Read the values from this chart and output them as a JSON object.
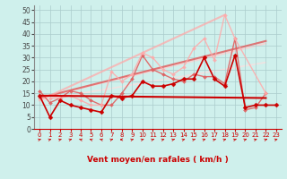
{
  "xlabel": "Vent moyen/en rafales ( km/h )",
  "xlim": [
    -0.5,
    23.5
  ],
  "ylim": [
    0,
    52
  ],
  "yticks": [
    0,
    5,
    10,
    15,
    20,
    25,
    30,
    35,
    40,
    45,
    50
  ],
  "xticks": [
    0,
    1,
    2,
    3,
    4,
    5,
    6,
    7,
    8,
    9,
    10,
    11,
    12,
    13,
    14,
    15,
    16,
    17,
    18,
    19,
    20,
    21,
    22,
    23
  ],
  "background_color": "#cff0ec",
  "grid_color": "#aacccc",
  "series": [
    {
      "x": [
        0,
        1,
        2,
        3,
        4,
        5,
        6,
        7,
        8,
        9,
        10,
        11,
        12,
        13,
        14,
        15,
        16,
        17,
        18,
        19,
        20,
        21,
        22,
        23
      ],
      "y": [
        14,
        5,
        12,
        10,
        9,
        8,
        7,
        14,
        13,
        14,
        20,
        18,
        18,
        19,
        21,
        21,
        30,
        21,
        18,
        31,
        9,
        10,
        10,
        10
      ],
      "color": "#cc0000",
      "lw": 1.2,
      "marker": "D",
      "ms": 2.5,
      "alpha": 1.0,
      "zorder": 5
    },
    {
      "x": [
        0,
        22
      ],
      "y": [
        14,
        13
      ],
      "color": "#cc0000",
      "lw": 1.5,
      "marker": null,
      "ms": 0,
      "alpha": 1.0,
      "zorder": 4
    },
    {
      "x": [
        0,
        1,
        2,
        3,
        4,
        5,
        6,
        7,
        8,
        9,
        10,
        11,
        12,
        13,
        14,
        15,
        16,
        17,
        18,
        19,
        20,
        21,
        22
      ],
      "y": [
        16,
        11,
        13,
        16,
        15,
        12,
        10,
        10,
        15,
        21,
        31,
        25,
        23,
        21,
        20,
        23,
        22,
        22,
        19,
        38,
        8,
        9,
        15
      ],
      "color": "#e06060",
      "lw": 1.0,
      "marker": "D",
      "ms": 2.0,
      "alpha": 0.9,
      "zorder": 3
    },
    {
      "x": [
        0,
        22
      ],
      "y": [
        13,
        37
      ],
      "color": "#e06060",
      "lw": 1.5,
      "marker": null,
      "ms": 0,
      "alpha": 0.85,
      "zorder": 2
    },
    {
      "x": [
        1,
        2,
        3,
        4,
        5,
        6,
        7,
        8,
        9,
        10,
        11,
        12,
        13,
        14,
        15,
        16,
        17,
        18,
        19,
        22
      ],
      "y": [
        13,
        13,
        14,
        12,
        10,
        10,
        24,
        20,
        23,
        32,
        30,
        25,
        23,
        26,
        34,
        38,
        29,
        48,
        38,
        15
      ],
      "color": "#ffaaaa",
      "lw": 1.0,
      "marker": "D",
      "ms": 2.0,
      "alpha": 0.85,
      "zorder": 3
    },
    {
      "x": [
        0,
        18
      ],
      "y": [
        12,
        48
      ],
      "color": "#ffaaaa",
      "lw": 1.5,
      "marker": null,
      "ms": 0,
      "alpha": 0.75,
      "zorder": 2
    },
    {
      "x": [
        0,
        22
      ],
      "y": [
        13,
        36
      ],
      "color": "#ffcccc",
      "lw": 1.5,
      "marker": null,
      "ms": 0,
      "alpha": 0.75,
      "zorder": 1
    },
    {
      "x": [
        0,
        22
      ],
      "y": [
        12,
        28
      ],
      "color": "#ffdddd",
      "lw": 1.2,
      "marker": null,
      "ms": 0,
      "alpha": 0.7,
      "zorder": 1
    }
  ],
  "wind_arrows": {
    "x_positions": [
      0,
      1,
      2,
      3,
      4,
      5,
      6,
      7,
      8,
      9,
      10,
      11,
      12,
      13,
      14,
      15,
      16,
      17,
      18,
      19,
      20,
      21,
      22,
      23
    ],
    "directions": [
      45,
      45,
      45,
      45,
      315,
      315,
      315,
      45,
      270,
      45,
      45,
      45,
      45,
      45,
      45,
      45,
      45,
      45,
      45,
      45,
      45,
      45,
      45,
      45
    ]
  }
}
